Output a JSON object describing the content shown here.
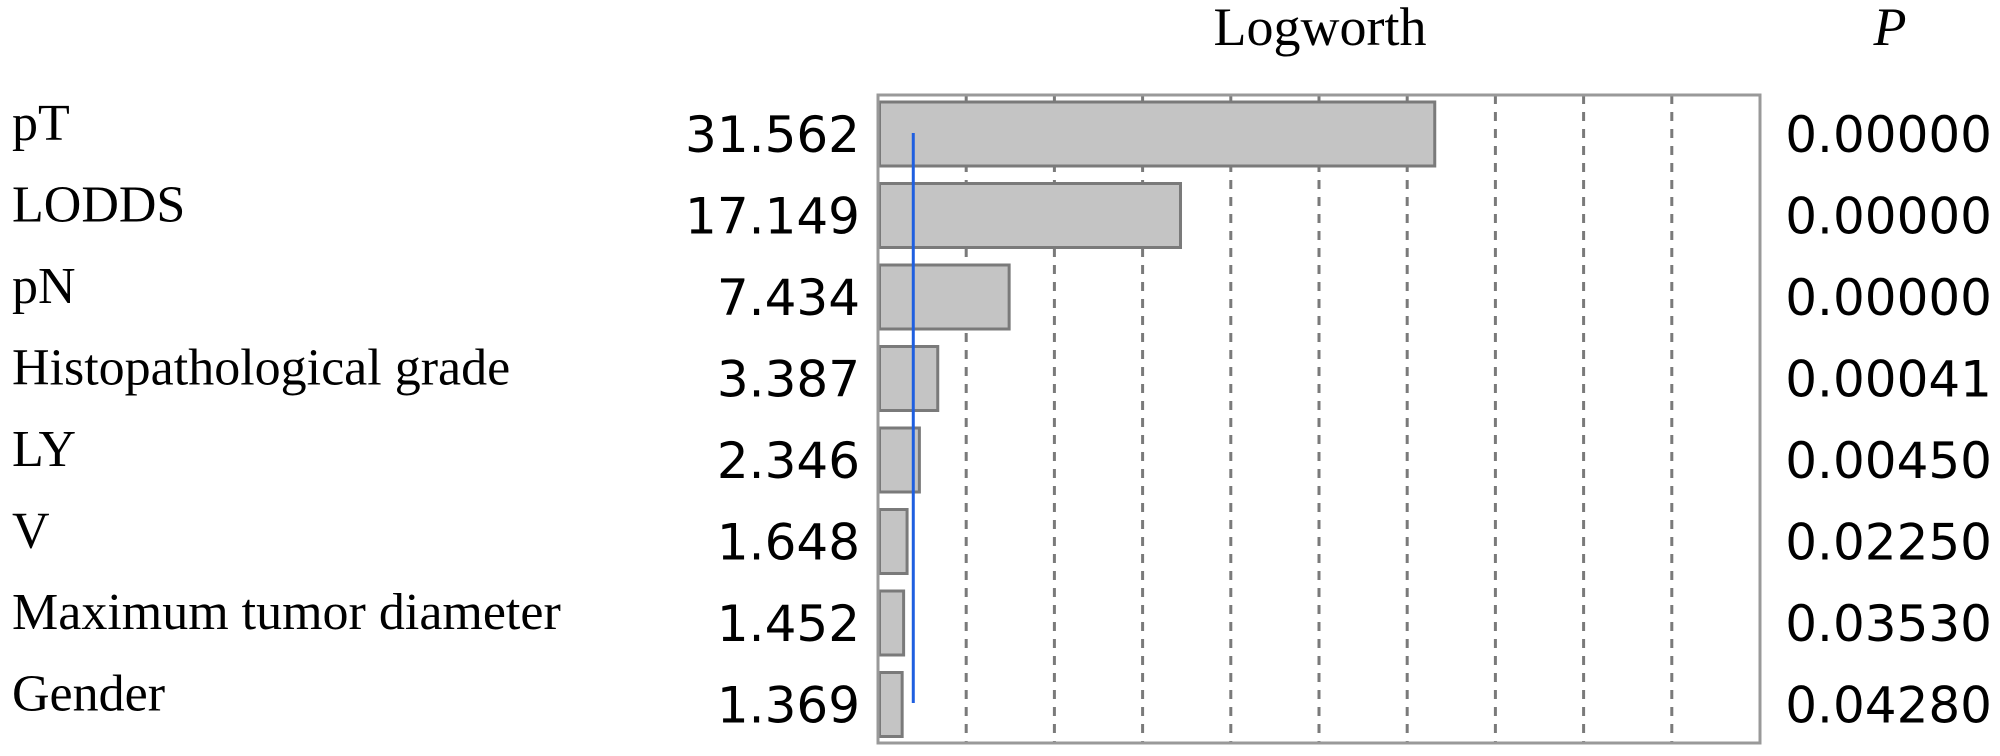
{
  "chart_data": {
    "type": "bar",
    "orientation": "horizontal",
    "value_header": "Logworth",
    "p_header": "P",
    "categories": [
      "pT",
      "LODDS",
      "pN",
      "Histopathological grade",
      "LY",
      "V",
      "Maximum tumor diameter",
      "Gender"
    ],
    "logworth_labels": [
      "31.562",
      "17.149",
      "7.434",
      "3.387",
      "2.346",
      "1.648",
      "1.452",
      "1.369"
    ],
    "values": [
      31.562,
      17.149,
      7.434,
      3.387,
      2.346,
      1.648,
      1.452,
      1.369
    ],
    "p_values": [
      "0.00000",
      "0.00000",
      "0.00000",
      "0.00041",
      "0.00450",
      "0.02250",
      "0.03530",
      "0.04280"
    ],
    "xlim": [
      0,
      50
    ],
    "gridlines": [
      5,
      10,
      15,
      20,
      25,
      30,
      35,
      40,
      45
    ],
    "reference_line": 2,
    "grid": true,
    "colors": {
      "bar_fill": "#c4c4c4",
      "bar_stroke": "#7a7a7a",
      "frame": "#999999",
      "reference_line": "#1f5fe0",
      "grid": "#7a7a7a"
    }
  }
}
